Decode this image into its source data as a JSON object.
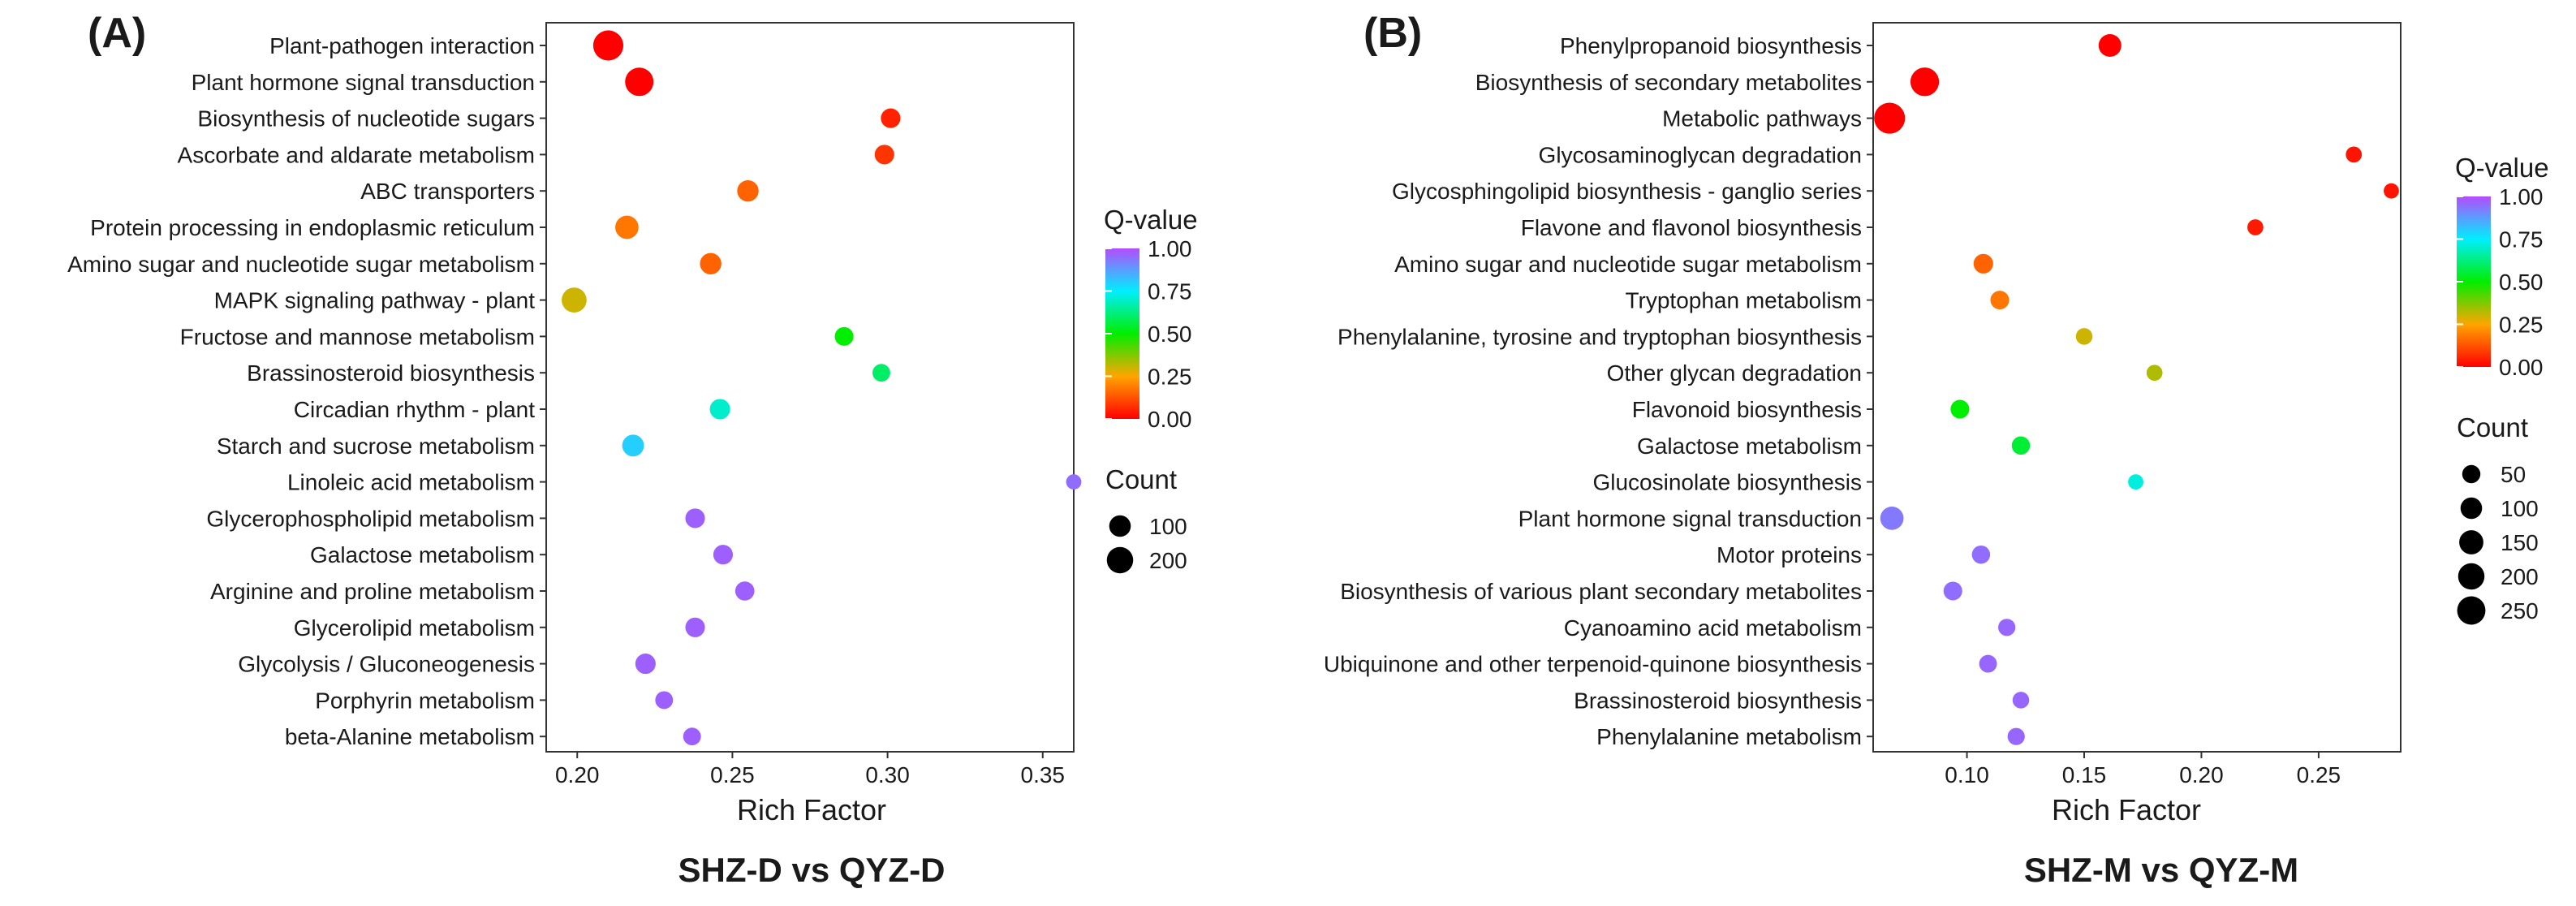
{
  "chart_data": [
    {
      "type": "scatter",
      "panel_label": "(A)",
      "caption": "SHZ-D vs QYZ-D",
      "xlabel": "Rich Factor",
      "xlim": [
        0.19,
        0.36
      ],
      "xticks": [
        "0.20",
        "0.25",
        "0.30",
        "0.35"
      ],
      "size_legend": {
        "title": "Count",
        "values": [
          100,
          200
        ]
      },
      "color_legend": {
        "title": "Q-value",
        "ticks": [
          "1.00",
          "0.75",
          "0.50",
          "0.25",
          "0.00"
        ]
      },
      "points": [
        {
          "pathway": "Plant-pathogen interaction",
          "rich_factor": 0.21,
          "qvalue": 0.0,
          "count": 260
        },
        {
          "pathway": "Plant hormone signal transduction",
          "rich_factor": 0.22,
          "qvalue": 0.0,
          "count": 215
        },
        {
          "pathway": "Biosynthesis of nucleotide sugars",
          "rich_factor": 0.301,
          "qvalue": 0.05,
          "count": 55
        },
        {
          "pathway": "Ascorbate and aldarate metabolism",
          "rich_factor": 0.299,
          "qvalue": 0.08,
          "count": 55
        },
        {
          "pathway": "ABC transporters",
          "rich_factor": 0.255,
          "qvalue": 0.15,
          "count": 80
        },
        {
          "pathway": "Protein processing in endoplasmic reticulum",
          "rich_factor": 0.216,
          "qvalue": 0.18,
          "count": 110
        },
        {
          "pathway": "Amino sugar and nucleotide sugar metabolism",
          "rich_factor": 0.243,
          "qvalue": 0.15,
          "count": 80
        },
        {
          "pathway": "MAPK signaling pathway - plant",
          "rich_factor": 0.199,
          "qvalue": 0.3,
          "count": 140
        },
        {
          "pathway": "Fructose and mannose metabolism",
          "rich_factor": 0.286,
          "qvalue": 0.5,
          "count": 45
        },
        {
          "pathway": "Brassinosteroid biosynthesis",
          "rich_factor": 0.298,
          "qvalue": 0.6,
          "count": 35
        },
        {
          "pathway": "Circadian rhythm - plant",
          "rich_factor": 0.246,
          "qvalue": 0.7,
          "count": 65
        },
        {
          "pathway": "Starch and sucrose metabolism",
          "rich_factor": 0.218,
          "qvalue": 0.8,
          "count": 85
        },
        {
          "pathway": "Linoleic acid metabolism",
          "rich_factor": 0.36,
          "qvalue": 0.95,
          "count": 15
        },
        {
          "pathway": "Glycerophospholipid metabolism",
          "rich_factor": 0.238,
          "qvalue": 0.97,
          "count": 55
        },
        {
          "pathway": "Galactose metabolism",
          "rich_factor": 0.247,
          "qvalue": 0.97,
          "count": 55
        },
        {
          "pathway": "Arginine and proline metabolism",
          "rich_factor": 0.254,
          "qvalue": 0.97,
          "count": 50
        },
        {
          "pathway": "Glycerolipid metabolism",
          "rich_factor": 0.238,
          "qvalue": 0.97,
          "count": 55
        },
        {
          "pathway": "Glycolysis / Gluconeogenesis",
          "rich_factor": 0.222,
          "qvalue": 0.97,
          "count": 65
        },
        {
          "pathway": "Porphyrin metabolism",
          "rich_factor": 0.228,
          "qvalue": 0.97,
          "count": 35
        },
        {
          "pathway": "beta-Alanine metabolism",
          "rich_factor": 0.237,
          "qvalue": 0.97,
          "count": 35
        }
      ]
    },
    {
      "type": "scatter",
      "panel_label": "(B)",
      "caption": "SHZ-M vs QYZ-M",
      "xlabel": "Rich Factor",
      "xlim": [
        0.06,
        0.285
      ],
      "xticks": [
        "0.10",
        "0.15",
        "0.20",
        "0.25"
      ],
      "size_legend": {
        "title": "Count",
        "values": [
          50,
          100,
          150,
          200,
          250
        ]
      },
      "color_legend": {
        "title": "Q-value",
        "ticks": [
          "1.00",
          "0.75",
          "0.50",
          "0.25",
          "0.00"
        ]
      },
      "points": [
        {
          "pathway": "Phenylpropanoid biosynthesis",
          "rich_factor": 0.161,
          "qvalue": 0.0,
          "count": 100
        },
        {
          "pathway": "Biosynthesis of secondary metabolites",
          "rich_factor": 0.082,
          "qvalue": 0.0,
          "count": 220
        },
        {
          "pathway": "Metabolic pathways",
          "rich_factor": 0.067,
          "qvalue": 0.0,
          "count": 280
        },
        {
          "pathway": "Glycosaminoglycan degradation",
          "rich_factor": 0.265,
          "qvalue": 0.03,
          "count": 20
        },
        {
          "pathway": "Glycosphingolipid biosynthesis - ganglio series",
          "rich_factor": 0.281,
          "qvalue": 0.03,
          "count": 15
        },
        {
          "pathway": "Flavone and flavonol biosynthesis",
          "rich_factor": 0.223,
          "qvalue": 0.04,
          "count": 20
        },
        {
          "pathway": "Amino sugar and nucleotide sugar metabolism",
          "rich_factor": 0.107,
          "qvalue": 0.15,
          "count": 55
        },
        {
          "pathway": "Tryptophan metabolism",
          "rich_factor": 0.114,
          "qvalue": 0.18,
          "count": 45
        },
        {
          "pathway": "Phenylalanine, tyrosine and tryptophan biosynthesis",
          "rich_factor": 0.15,
          "qvalue": 0.3,
          "count": 25
        },
        {
          "pathway": "Other glycan degradation",
          "rich_factor": 0.18,
          "qvalue": 0.33,
          "count": 20
        },
        {
          "pathway": "Flavonoid biosynthesis",
          "rich_factor": 0.097,
          "qvalue": 0.5,
          "count": 45
        },
        {
          "pathway": "Galactose metabolism",
          "rich_factor": 0.123,
          "qvalue": 0.55,
          "count": 40
        },
        {
          "pathway": "Glucosinolate biosynthesis",
          "rich_factor": 0.172,
          "qvalue": 0.72,
          "count": 15
        },
        {
          "pathway": "Plant hormone signal transduction",
          "rich_factor": 0.068,
          "qvalue": 0.93,
          "count": 110
        },
        {
          "pathway": "Motor proteins",
          "rich_factor": 0.106,
          "qvalue": 0.95,
          "count": 40
        },
        {
          "pathway": "Biosynthesis of various plant secondary metabolites",
          "rich_factor": 0.094,
          "qvalue": 0.95,
          "count": 45
        },
        {
          "pathway": "Cyanoamino acid metabolism",
          "rich_factor": 0.117,
          "qvalue": 0.96,
          "count": 30
        },
        {
          "pathway": "Ubiquinone and other terpenoid-quinone biosynthesis",
          "rich_factor": 0.109,
          "qvalue": 0.96,
          "count": 35
        },
        {
          "pathway": "Brassinosteroid biosynthesis",
          "rich_factor": 0.123,
          "qvalue": 0.96,
          "count": 25
        },
        {
          "pathway": "Phenylalanine metabolism",
          "rich_factor": 0.121,
          "qvalue": 0.96,
          "count": 30
        }
      ]
    }
  ]
}
